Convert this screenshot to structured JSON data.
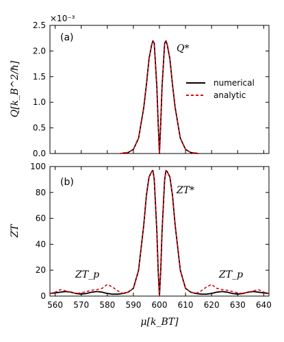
{
  "chart_data": [
    {
      "type": "line",
      "panel": "(a)",
      "ylabel": "Q[k_B^2/ħ]",
      "yscale_label": "×10⁻³",
      "xlim": [
        558,
        642
      ],
      "ylim": [
        0,
        2.5
      ],
      "yticks": [
        0.0,
        0.5,
        1.0,
        1.5,
        2.0,
        2.5
      ],
      "ytick_labels": [
        "0.0",
        "0.5",
        "1.0",
        "1.5",
        "2.0",
        "2.5"
      ],
      "annotation": "Q*",
      "legend": {
        "position": "right",
        "entries": [
          {
            "name": "numerical",
            "color": "#000000",
            "style": "solid"
          },
          {
            "name": "analytic",
            "color": "#e8000b",
            "style": "dashed"
          }
        ]
      },
      "series": [
        {
          "name": "numerical",
          "x": [
            585,
            588,
            590,
            592,
            594,
            595,
            596,
            597,
            597.5,
            598,
            599,
            599.5,
            600,
            600.5,
            601,
            602,
            602.5,
            603,
            604,
            605,
            606,
            608,
            610,
            612,
            615
          ],
          "values": [
            0,
            0.02,
            0.08,
            0.3,
            0.9,
            1.35,
            1.85,
            2.12,
            2.2,
            2.15,
            1.3,
            0.6,
            0,
            0.6,
            1.3,
            2.15,
            2.2,
            2.12,
            1.85,
            1.35,
            0.9,
            0.3,
            0.08,
            0.02,
            0
          ]
        },
        {
          "name": "analytic",
          "x": [
            585,
            588,
            590,
            592,
            594,
            595,
            596,
            597,
            597.5,
            598,
            599,
            599.5,
            600,
            600.5,
            601,
            602,
            602.5,
            603,
            604,
            605,
            606,
            608,
            610,
            612,
            615
          ],
          "values": [
            0,
            0.02,
            0.08,
            0.3,
            0.9,
            1.35,
            1.85,
            2.12,
            2.2,
            2.15,
            1.3,
            0.6,
            0,
            0.6,
            1.3,
            2.15,
            2.2,
            2.12,
            1.85,
            1.35,
            0.9,
            0.3,
            0.08,
            0.02,
            0
          ]
        }
      ]
    },
    {
      "type": "line",
      "panel": "(b)",
      "ylabel": "ZT",
      "xlabel": "μ[k_BT]",
      "xlim": [
        558,
        642
      ],
      "ylim": [
        0,
        100
      ],
      "xticks": [
        560,
        570,
        580,
        590,
        600,
        610,
        620,
        630,
        640
      ],
      "yticks": [
        0,
        20,
        40,
        60,
        80,
        100
      ],
      "annotations": [
        "ZT*",
        "ZT_p",
        "ZT_p"
      ],
      "series": [
        {
          "name": "numerical",
          "x": [
            558,
            560,
            562,
            564,
            566,
            568,
            570,
            572,
            574,
            576,
            578,
            580,
            582,
            584,
            586,
            588,
            590,
            592,
            594,
            595,
            596,
            597,
            597.5,
            598,
            599,
            599.5,
            600,
            600.5,
            601,
            602,
            602.5,
            603,
            604,
            605,
            606,
            608,
            610,
            612,
            614,
            616,
            618,
            620,
            622,
            624,
            626,
            628,
            630,
            632,
            634,
            636,
            638,
            640,
            642
          ],
          "values": [
            2,
            2.5,
            3,
            3.5,
            3,
            2,
            1.5,
            2,
            3,
            3.5,
            3,
            2,
            1.5,
            1.5,
            2,
            3,
            6,
            20,
            55,
            78,
            92,
            96,
            97,
            90,
            50,
            20,
            0,
            20,
            50,
            90,
            97,
            96,
            92,
            78,
            55,
            20,
            6,
            3,
            2,
            1.5,
            1.5,
            2,
            3,
            3.5,
            3,
            2,
            1.5,
            2,
            3,
            3.5,
            3,
            2.5,
            2
          ]
        },
        {
          "name": "analytic",
          "x": [
            558,
            560,
            562,
            564,
            566,
            568,
            570,
            572,
            574,
            576,
            578,
            580,
            582,
            584,
            586,
            588,
            590,
            592,
            594,
            595,
            596,
            597,
            597.5,
            598,
            599,
            599.5,
            600,
            600.5,
            601,
            602,
            602.5,
            603,
            604,
            605,
            606,
            608,
            610,
            612,
            614,
            616,
            618,
            620,
            622,
            624,
            626,
            628,
            630,
            632,
            634,
            636,
            638,
            640,
            642
          ],
          "values": [
            2,
            3,
            5,
            4,
            3,
            2,
            2.5,
            3.5,
            4.5,
            5,
            6,
            9,
            7,
            4,
            2,
            3,
            6,
            20,
            55,
            78,
            92,
            96,
            97,
            90,
            50,
            20,
            0,
            20,
            50,
            90,
            97,
            96,
            92,
            78,
            55,
            20,
            6,
            3,
            2,
            4,
            7,
            9,
            6,
            5,
            4.5,
            3.5,
            2.5,
            2,
            3,
            4,
            5,
            3,
            2
          ]
        }
      ]
    }
  ]
}
